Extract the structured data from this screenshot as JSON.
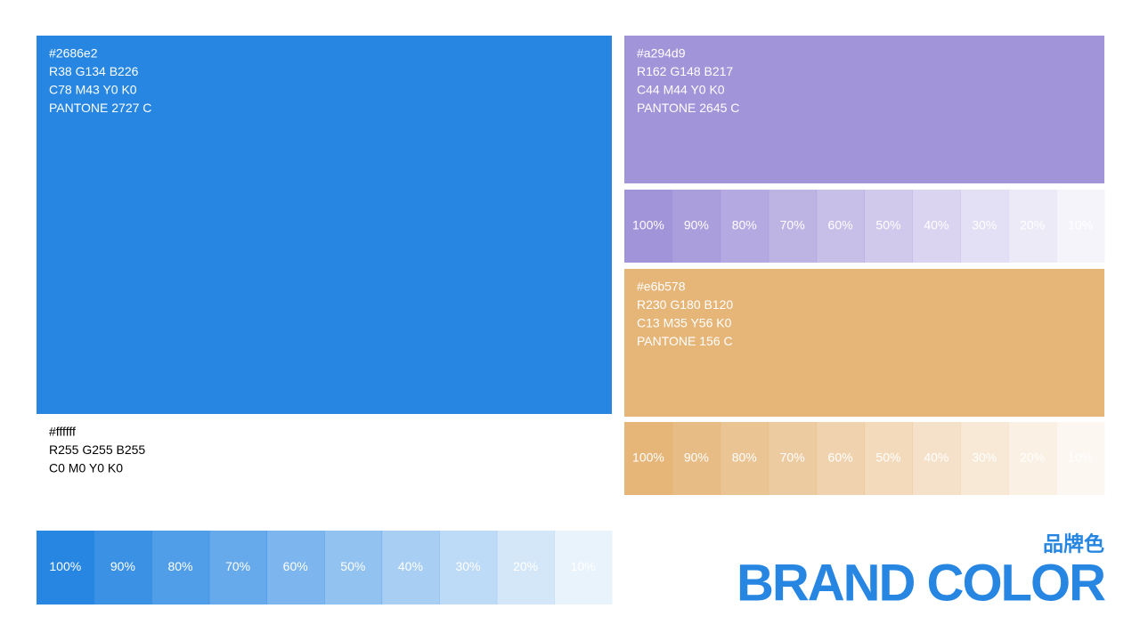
{
  "colors": [
    {
      "hex": "#2686e2",
      "rgb": "R38 G134 B226",
      "cmyk": "C78 M43 Y0 K0",
      "pantone": "PANTONE 2727 C",
      "tints": [
        "100%",
        "90%",
        "80%",
        "70%",
        "60%",
        "50%",
        "40%",
        "30%",
        "20%",
        "10%"
      ]
    },
    {
      "hex": "#ffffff",
      "rgb": "R255 G255 B255",
      "cmyk": "C0 M0 Y0 K0"
    },
    {
      "hex": "#a294d9",
      "rgb": "R162 G148 B217",
      "cmyk": "C44 M44 Y0 K0",
      "pantone": "PANTONE 2645 C",
      "tints": [
        "100%",
        "90%",
        "80%",
        "70%",
        "60%",
        "50%",
        "40%",
        "30%",
        "20%",
        "10%"
      ]
    },
    {
      "hex": "#e6b578",
      "rgb": "R230 G180 B120",
      "cmyk": "C13 M35 Y56 K0",
      "pantone": "PANTONE 156 C",
      "tints": [
        "100%",
        "90%",
        "80%",
        "70%",
        "60%",
        "50%",
        "40%",
        "30%",
        "20%",
        "10%"
      ]
    }
  ],
  "title": {
    "zh": "品牌色",
    "en": "BRAND COLOR"
  }
}
